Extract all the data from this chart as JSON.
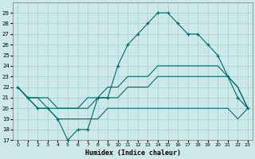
{
  "background_color": "#cde8e8",
  "grid_color": "#aad4d4",
  "line_color": "#006b6b",
  "xlabel": "Humidex (Indice chaleur)",
  "hours": [
    0,
    1,
    2,
    3,
    4,
    5,
    6,
    7,
    8,
    9,
    10,
    11,
    12,
    13,
    14,
    15,
    16,
    17,
    18,
    19,
    20,
    21,
    22,
    23
  ],
  "main_curve": [
    22,
    21,
    20,
    20,
    19,
    17,
    18,
    18,
    21,
    21,
    24,
    26,
    27,
    28,
    29,
    29,
    28,
    27,
    27,
    26,
    25,
    23,
    21,
    20
  ],
  "upper_line1": [
    22,
    21,
    21,
    21,
    20,
    20,
    20,
    21,
    21,
    22,
    22,
    23,
    23,
    23,
    24,
    24,
    24,
    24,
    24,
    24,
    24,
    23,
    22,
    20
  ],
  "upper_line2": [
    22,
    21,
    21,
    20,
    20,
    20,
    20,
    20,
    21,
    21,
    21,
    22,
    22,
    22,
    23,
    23,
    23,
    23,
    23,
    23,
    23,
    23,
    22,
    20
  ],
  "lower_line": [
    22,
    21,
    20,
    20,
    19,
    19,
    19,
    19,
    19,
    20,
    20,
    20,
    20,
    20,
    20,
    20,
    20,
    20,
    20,
    20,
    20,
    20,
    19,
    20
  ],
  "ylim": [
    17,
    30
  ],
  "yticks": [
    17,
    18,
    19,
    20,
    21,
    22,
    23,
    24,
    25,
    26,
    27,
    28,
    29
  ],
  "xlim": [
    -0.5,
    23.5
  ],
  "xticks": [
    0,
    1,
    2,
    3,
    4,
    5,
    6,
    7,
    8,
    9,
    10,
    11,
    12,
    13,
    14,
    15,
    16,
    17,
    18,
    19,
    20,
    21,
    22,
    23
  ],
  "figsize": [
    3.2,
    2.0
  ],
  "dpi": 100
}
